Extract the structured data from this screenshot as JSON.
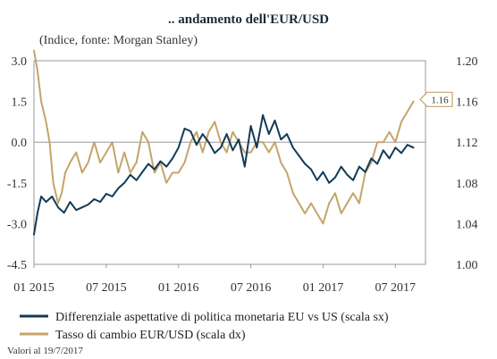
{
  "chart_data": {
    "type": "line",
    "title": ".. andamento dell'EUR/USD",
    "subtitle": "(Indice, fonte: Morgan Stanley)",
    "x_ticks": [
      "01 2015",
      "07 2015",
      "01 2016",
      "07 2016",
      "01 2017",
      "07 2017"
    ],
    "x_tick_pos": [
      0,
      6,
      12,
      18,
      24,
      30
    ],
    "x_range": [
      0,
      32.5
    ],
    "y_left": {
      "range": [
        -4.5,
        3.0
      ],
      "ticks": [
        "3.0",
        "1.5",
        "0.0",
        "-1.5",
        "-3.0",
        "-4.5"
      ],
      "tick_values": [
        3.0,
        1.5,
        0.0,
        -1.5,
        -3.0,
        -4.5
      ]
    },
    "y_right": {
      "range": [
        1.0,
        1.2
      ],
      "ticks": [
        "1.20",
        "1.16",
        "1.12",
        "1.08",
        "1.04",
        "1.00"
      ],
      "tick_values": [
        1.2,
        1.16,
        1.12,
        1.08,
        1.04,
        1.0
      ]
    },
    "reference_line": 0.0,
    "end_label": "1.16",
    "end_label_value": 1.155,
    "series": [
      {
        "name": "Differenziale aspettative di politica monetaria EU vs US (scala sx)",
        "axis": "left",
        "color": "#123a56",
        "x": [
          0,
          0.3,
          0.6,
          1,
          1.5,
          2,
          2.5,
          3,
          3.5,
          4,
          4.5,
          5,
          5.5,
          6,
          6.5,
          7,
          7.5,
          8,
          8.5,
          9,
          9.5,
          10,
          10.5,
          11,
          11.5,
          12,
          12.5,
          13,
          13.5,
          14,
          14.5,
          15,
          15.5,
          16,
          16.5,
          17,
          17.5,
          18,
          18.5,
          19,
          19.5,
          20,
          20.5,
          21,
          21.5,
          22,
          22.5,
          23,
          23.5,
          24,
          24.5,
          25,
          25.5,
          26,
          26.5,
          27,
          27.5,
          28,
          28.5,
          29,
          29.5,
          30,
          30.5,
          31,
          31.5
        ],
        "values": [
          -3.4,
          -2.6,
          -2.0,
          -2.2,
          -2.0,
          -2.4,
          -2.6,
          -2.2,
          -2.5,
          -2.4,
          -2.3,
          -2.1,
          -2.2,
          -1.9,
          -2.0,
          -1.7,
          -1.5,
          -1.2,
          -1.4,
          -1.1,
          -0.8,
          -1.0,
          -0.7,
          -0.9,
          -0.6,
          -0.2,
          0.5,
          0.4,
          -0.1,
          0.3,
          0.0,
          -0.4,
          -0.2,
          0.3,
          -0.3,
          0.1,
          -0.9,
          0.6,
          -0.2,
          1.0,
          0.3,
          0.8,
          0.1,
          0.3,
          -0.2,
          -0.5,
          -0.8,
          -1.0,
          -1.4,
          -1.1,
          -1.5,
          -1.3,
          -0.9,
          -1.2,
          -1.4,
          -0.9,
          -1.1,
          -0.6,
          -0.8,
          -0.3,
          -0.6,
          -0.2,
          -0.4,
          -0.1,
          -0.2
        ]
      },
      {
        "name": "Tasso di cambio EUR/USD (scala dx)",
        "axis": "right",
        "color": "#c4a46a",
        "x": [
          0,
          0.3,
          0.6,
          1,
          1.3,
          1.6,
          2,
          2.3,
          2.6,
          3,
          3.5,
          4,
          4.5,
          5,
          5.5,
          6,
          6.5,
          7,
          7.5,
          8,
          8.5,
          9,
          9.5,
          10,
          10.5,
          11,
          11.5,
          12,
          12.5,
          13,
          13.5,
          14,
          14.5,
          15,
          15.5,
          16,
          16.5,
          17,
          17.5,
          18,
          18.5,
          19,
          19.5,
          20,
          20.5,
          21,
          21.5,
          22,
          22.5,
          23,
          23.5,
          24,
          24.5,
          25,
          25.5,
          26,
          26.5,
          27,
          27.5,
          28,
          28.5,
          29,
          29.5,
          30,
          30.5,
          31,
          31.5
        ],
        "values": [
          1.21,
          1.19,
          1.16,
          1.14,
          1.12,
          1.08,
          1.06,
          1.07,
          1.09,
          1.1,
          1.11,
          1.09,
          1.1,
          1.12,
          1.1,
          1.11,
          1.12,
          1.09,
          1.11,
          1.09,
          1.1,
          1.13,
          1.12,
          1.09,
          1.1,
          1.08,
          1.09,
          1.09,
          1.1,
          1.12,
          1.13,
          1.11,
          1.13,
          1.14,
          1.12,
          1.11,
          1.13,
          1.12,
          1.11,
          1.11,
          1.12,
          1.12,
          1.11,
          1.12,
          1.1,
          1.09,
          1.07,
          1.06,
          1.05,
          1.06,
          1.05,
          1.04,
          1.06,
          1.07,
          1.05,
          1.06,
          1.07,
          1.06,
          1.09,
          1.1,
          1.12,
          1.12,
          1.13,
          1.12,
          1.14,
          1.15,
          1.16
        ]
      }
    ],
    "legend_placement": "bottom",
    "footnote": "Valori al 19/7/2017"
  }
}
